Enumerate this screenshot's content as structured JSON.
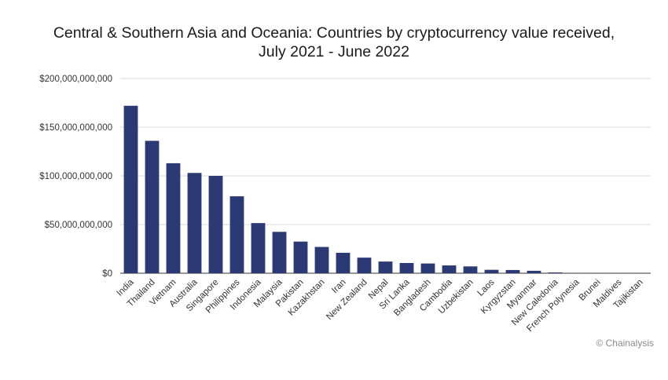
{
  "chart_data": {
    "type": "bar",
    "title_line1": "Central & Southern Asia and Oceania: Countries by cryptocurrency value received,",
    "title_line2": "July 2021 - June 2022",
    "xlabel": "",
    "ylabel": "",
    "ylim": [
      0,
      200000000000
    ],
    "yticks": [
      "$0",
      "$50,000,000,000",
      "$100,000,000,000",
      "$150,000,000,000",
      "$200,000,000,000"
    ],
    "grid": true,
    "bar_color": "#2b3a74",
    "categories": [
      "India",
      "Thailand",
      "Vietnam",
      "Australia",
      "Singapore",
      "Philippines",
      "Indonesia",
      "Malaysia",
      "Pakistan",
      "Kazakhstan",
      "Iran",
      "New Zealand",
      "Nepal",
      "Sri Lanka",
      "Bangladesh",
      "Cambodia",
      "Uzbekistan",
      "Laos",
      "Kyrgyzstan",
      "Myanmar",
      "New Caledonia",
      "French Polynesia",
      "Brunei",
      "Maldives",
      "Tajikistan"
    ],
    "values": [
      172000000000,
      136000000000,
      113000000000,
      103000000000,
      100000000000,
      79000000000,
      51500000000,
      42500000000,
      32500000000,
      27000000000,
      21000000000,
      16000000000,
      12000000000,
      10500000000,
      10000000000,
      8000000000,
      7000000000,
      3500000000,
      3300000000,
      2500000000,
      800000000,
      300000000,
      200000000,
      200000000,
      100000000
    ]
  },
  "credit": "© Chainalysis"
}
